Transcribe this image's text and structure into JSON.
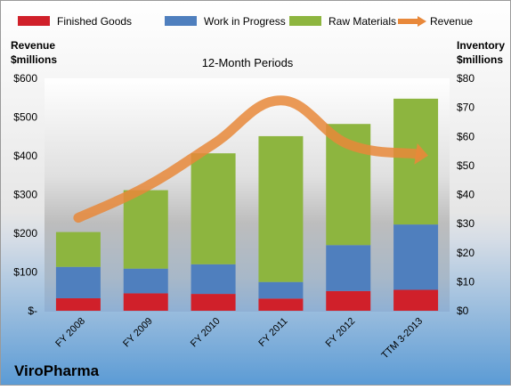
{
  "chart_data": {
    "type": "bar",
    "stacked": true,
    "title": "12-Month Periods",
    "company": "ViroPharma",
    "categories": [
      "FY 2008",
      "FY 2009",
      "FY 2010",
      "FY 2011",
      "FY 2012",
      "TTM 3-2013"
    ],
    "y_left": {
      "label": [
        "Revenue",
        "$millions"
      ],
      "ylim": [
        0,
        600
      ],
      "ticks": [
        0,
        100,
        200,
        300,
        400,
        500,
        600
      ],
      "tick_labels": [
        "$-",
        "$100",
        "$200",
        "$300",
        "$400",
        "$500",
        "$600"
      ]
    },
    "y_right": {
      "label": [
        "Inventory",
        "$millions"
      ],
      "ylim": [
        0,
        80
      ],
      "ticks": [
        0,
        10,
        20,
        30,
        40,
        50,
        60,
        70,
        80
      ],
      "tick_labels": [
        "$0",
        "$10",
        "$20",
        "$30",
        "$40",
        "$50",
        "$60",
        "$70",
        "$80"
      ]
    },
    "series": [
      {
        "name": "Finished Goods",
        "axis": "right",
        "color": "#d0202a",
        "values": [
          4.3,
          6.0,
          5.8,
          4.2,
          6.8,
          7.2
        ]
      },
      {
        "name": "Work in Progress",
        "axis": "right",
        "color": "#4f7fbe",
        "values": [
          10.8,
          8.5,
          10.2,
          5.7,
          15.8,
          22.5
        ]
      },
      {
        "name": "Raw Materials",
        "axis": "right",
        "color": "#8db53f",
        "values": [
          12.0,
          27.0,
          38.2,
          50.2,
          41.7,
          43.3
        ]
      },
      {
        "name": "Revenue",
        "axis": "left",
        "type": "line",
        "color": "#e8883a",
        "values": [
          240,
          320,
          430,
          543,
          430,
          405
        ]
      }
    ],
    "legend": "top",
    "grid": false,
    "background_colors": {
      "top": "#ffffff",
      "bottom": "#5b9bd5"
    }
  }
}
